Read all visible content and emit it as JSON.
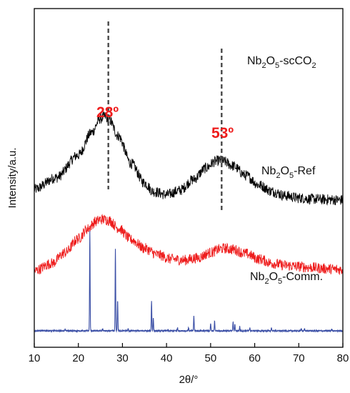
{
  "chart_data": {
    "type": "line",
    "xlabel": "2θ/°",
    "ylabel": "Intensity/a.u.",
    "xlim": [
      10,
      80
    ],
    "xticks": [
      10,
      20,
      30,
      40,
      50,
      60,
      70,
      80
    ],
    "yticks": [],
    "grid": false,
    "legend": "none",
    "series": [
      {
        "name": "Nb2O5-scCO2",
        "label": {
          "base1": "Nb",
          "sub1": "2",
          "base2": "O",
          "sub2": "5",
          "base3": "-scCO",
          "sub3": "2",
          "tail": ""
        },
        "color": "#000000",
        "x": [
          10,
          15,
          20,
          23,
          25,
          26,
          27,
          29,
          32,
          35,
          37,
          40,
          43,
          46,
          49,
          51,
          52,
          53,
          55,
          58,
          61,
          64,
          67,
          70,
          73,
          76,
          80
        ],
        "y": [
          1.34,
          1.45,
          1.66,
          1.87,
          2.0,
          2.02,
          1.99,
          1.84,
          1.58,
          1.4,
          1.32,
          1.29,
          1.33,
          1.43,
          1.54,
          1.6,
          1.61,
          1.6,
          1.56,
          1.47,
          1.38,
          1.32,
          1.28,
          1.26,
          1.25,
          1.245,
          1.24
        ]
      },
      {
        "name": "Nb2O5-Ref",
        "label": {
          "base1": "Nb",
          "sub1": "2",
          "base2": "O",
          "sub2": "5",
          "base3": "-Ref",
          "sub3": "",
          "tail": ""
        },
        "color": "#ee1c1c",
        "x": [
          10,
          14,
          17,
          20,
          22,
          24,
          25,
          26,
          27,
          29,
          32,
          35,
          38,
          41,
          44,
          47,
          50,
          52,
          53,
          55,
          58,
          61,
          64,
          67,
          70,
          73,
          76,
          80
        ],
        "y": [
          0.58,
          0.65,
          0.75,
          0.88,
          0.97,
          1.04,
          1.06,
          1.06,
          1.05,
          0.98,
          0.87,
          0.79,
          0.73,
          0.69,
          0.68,
          0.7,
          0.75,
          0.78,
          0.79,
          0.78,
          0.74,
          0.69,
          0.65,
          0.63,
          0.62,
          0.61,
          0.6,
          0.59
        ]
      },
      {
        "name": "Nb2O5-Comm.",
        "label": {
          "base1": "Nb",
          "sub1": "2",
          "base2": "O",
          "sub2": "5",
          "base3": "-Comm.",
          "sub3": "",
          "tail": ""
        },
        "color": "#3b4fa6",
        "baseline": 0.02,
        "peaks": [
          {
            "x": 17.0,
            "h": 0.015
          },
          {
            "x": 22.6,
            "h": 0.93
          },
          {
            "x": 25.5,
            "h": 0.02
          },
          {
            "x": 28.4,
            "h": 0.76
          },
          {
            "x": 28.9,
            "h": 0.29
          },
          {
            "x": 31.3,
            "h": 0.02
          },
          {
            "x": 36.6,
            "h": 0.28
          },
          {
            "x": 37.0,
            "h": 0.12
          },
          {
            "x": 42.5,
            "h": 0.03
          },
          {
            "x": 45.0,
            "h": 0.03
          },
          {
            "x": 46.2,
            "h": 0.14
          },
          {
            "x": 50.0,
            "h": 0.07
          },
          {
            "x": 50.9,
            "h": 0.09
          },
          {
            "x": 55.1,
            "h": 0.09
          },
          {
            "x": 55.5,
            "h": 0.06
          },
          {
            "x": 56.6,
            "h": 0.04
          },
          {
            "x": 58.9,
            "h": 0.03
          },
          {
            "x": 63.8,
            "h": 0.03
          },
          {
            "x": 70.6,
            "h": 0.02
          },
          {
            "x": 71.3,
            "h": 0.02
          },
          {
            "x": 77.5,
            "h": 0.015
          }
        ]
      }
    ],
    "annotations": [
      {
        "text": "28º",
        "x": 26.8,
        "color": "#ee1c1c"
      },
      {
        "text": "53º",
        "x": 52.5,
        "color": "#ee1c1c"
      }
    ],
    "reference_lines": [
      {
        "x": 26.8,
        "color": "#4a4a4a",
        "style": "dashed"
      },
      {
        "x": 52.5,
        "color": "#4a4a4a",
        "style": "dashed"
      }
    ]
  }
}
